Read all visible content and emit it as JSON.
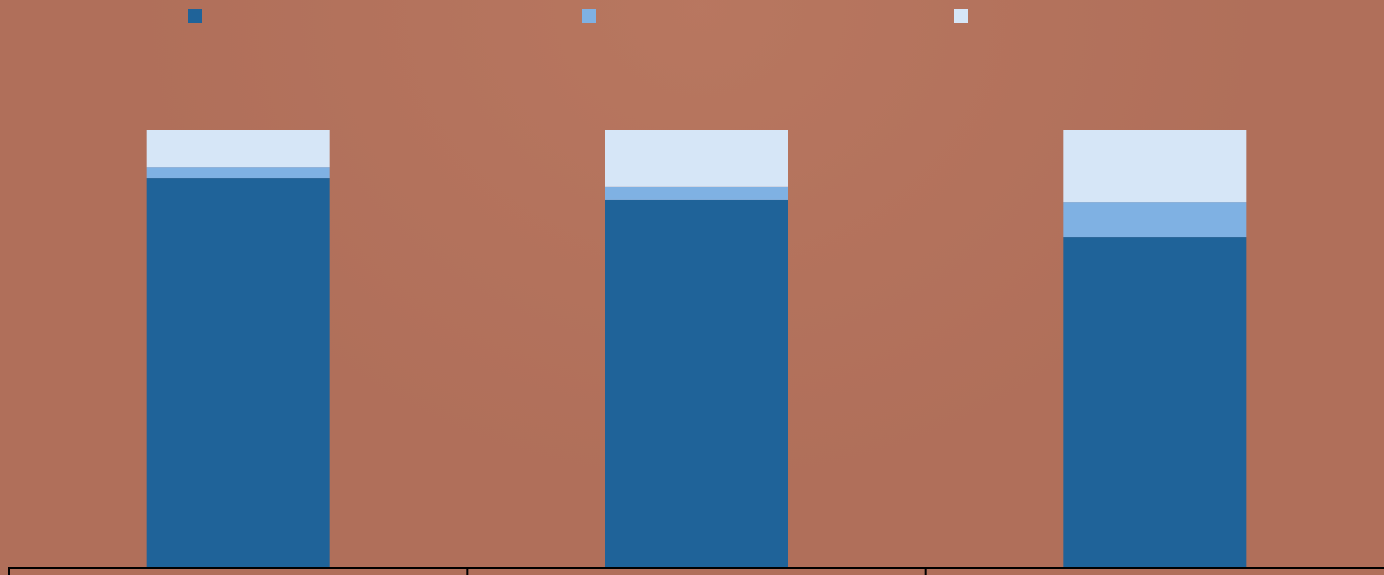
{
  "chart_data": {
    "type": "bar",
    "stacked": true,
    "normalized": true,
    "categories": [
      "",
      "",
      ""
    ],
    "series": [
      {
        "values": [
          0.89,
          0.84,
          0.755
        ],
        "color": "#1f6399"
      },
      {
        "values": [
          0.025,
          0.03,
          0.08
        ],
        "color": "#7fb1e3"
      },
      {
        "values": [
          0.085,
          0.13,
          0.165
        ],
        "color": "#d6e6f7"
      }
    ],
    "ylim": [
      0,
      1
    ],
    "grid": false,
    "legend": "top",
    "title": "",
    "xlabel": "",
    "ylabel": ""
  },
  "colors": {
    "background": "#b06f5a",
    "axis": "#000000"
  }
}
